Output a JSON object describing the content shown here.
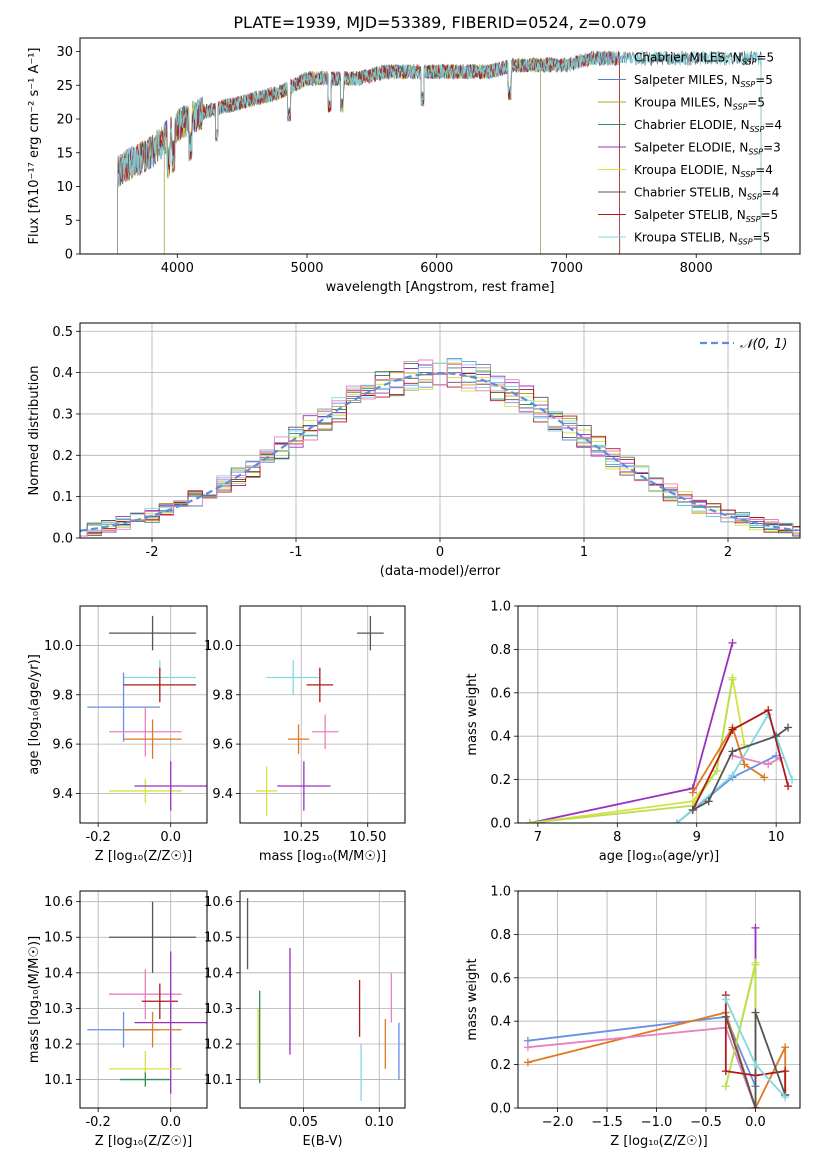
{
  "figure": {
    "title": "PLATE=1939, MJD=53389, FIBERID=0524, z=0.079"
  },
  "colors": {
    "Chabrier MILES": "#6a8ee8",
    "Salpeter MILES": "#6a8ee8",
    "Kroupa MILES": "#b8a030",
    "Chabrier ELODIE": "#3a8a5a",
    "Salpeter ELODIE": "#9a30c0",
    "Kroupa ELODIE": "#d8e040",
    "Chabrier STELIB": "#555555",
    "Salpeter STELIB": "#b01818",
    "Kroupa STELIB": "#80d8e0",
    "orange": "#e07a20",
    "pink": "#e880c0",
    "lime": "#b8e050",
    "normal": "#5b8fd8",
    "grid": "#b0b0b0"
  },
  "chart_data": [
    {
      "id": "spectrum",
      "type": "line",
      "title": "PLATE=1939, MJD=53389, FIBERID=0524, z=0.079",
      "xlabel": "wavelength [Angstrom, rest frame]",
      "ylabel": "Flux [fλ10⁻¹⁷ erg cm⁻² s⁻¹ A⁻¹]",
      "xlim": [
        3250,
        8800
      ],
      "ylim": [
        0,
        32
      ],
      "xticks": [
        4000,
        5000,
        6000,
        7000,
        8000
      ],
      "yticks": [
        0,
        5,
        10,
        15,
        20,
        25,
        30
      ],
      "legend_position": "right",
      "grid": false,
      "data_approx": {
        "x": [
          3520,
          3600,
          3800,
          3900,
          4000,
          4200,
          4400,
          4600,
          4800,
          5000,
          5200,
          5400,
          5600,
          5800,
          6000,
          6200,
          6400,
          6600,
          6800,
          7000,
          7200,
          7400
        ],
        "y": [
          12,
          13,
          15,
          17,
          19,
          21,
          22,
          23,
          24,
          26,
          26,
          26,
          27,
          27,
          27,
          27,
          27,
          28,
          28,
          28,
          29,
          29
        ]
      },
      "series": [
        {
          "name": "Chabrier MILES, N",
          "sub": "SSP",
          "suffix": "=5",
          "color": "#6a8ee8",
          "xmin": 3540,
          "xmax": 7410
        },
        {
          "name": "Salpeter MILES, N",
          "sub": "SSP",
          "suffix": "=5",
          "color": "#5a7ed0",
          "xmin": 3540,
          "xmax": 7410
        },
        {
          "name": "Kroupa MILES, N",
          "sub": "SSP",
          "suffix": "=5",
          "color": "#b8a030",
          "xmin": 3540,
          "xmax": 7410
        },
        {
          "name": "Chabrier ELODIE, N",
          "sub": "SSP",
          "suffix": "=4",
          "color": "#3a8a5a",
          "xmin": 3900,
          "xmax": 6800
        },
        {
          "name": "Salpeter ELODIE, N",
          "sub": "SSP",
          "suffix": "=3",
          "color": "#9a30c0",
          "xmin": 3900,
          "xmax": 6800
        },
        {
          "name": "Kroupa ELODIE, N",
          "sub": "SSP",
          "suffix": "=4",
          "color": "#d8e040",
          "xmin": 3900,
          "xmax": 6800
        },
        {
          "name": "Chabrier STELIB, N",
          "sub": "SSP",
          "suffix": "=4",
          "color": "#555555",
          "xmin": 3540,
          "xmax": 8500
        },
        {
          "name": "Salpeter STELIB, N",
          "sub": "SSP",
          "suffix": "=5",
          "color": "#b01818",
          "xmin": 3540,
          "xmax": 7410
        },
        {
          "name": "Kroupa STELIB, N",
          "sub": "SSP",
          "suffix": "=5",
          "color": "#80d8e0",
          "xmin": 3540,
          "xmax": 8500
        }
      ]
    },
    {
      "id": "residuals",
      "type": "line",
      "xlabel": "(data-model)/error",
      "ylabel": "Normed distribution",
      "xlim": [
        -2.5,
        2.5
      ],
      "ylim": [
        0,
        0.52
      ],
      "xticks": [
        -2,
        -1,
        0,
        1,
        2
      ],
      "yticks": [
        0.0,
        0.1,
        0.2,
        0.3,
        0.4,
        0.5
      ],
      "grid": true,
      "legend": {
        "label": "𝒩(0, 1)",
        "position": "top-right"
      },
      "bin_width": 0.1
    },
    {
      "id": "age_vs_Z",
      "type": "scatter",
      "xlabel": "Z [log₁₀(Z/Z☉)]",
      "ylabel": "age  [log₁₀(age/yr)]",
      "xlim": [
        -0.25,
        0.1
      ],
      "ylim": [
        9.28,
        10.16
      ],
      "xticks": [
        -0.2,
        0.0
      ],
      "yticks": [
        9.4,
        9.6,
        9.8,
        10.0
      ],
      "grid": true,
      "points": [
        {
          "color": "#555555",
          "x": -0.05,
          "y": 10.05,
          "xerr": 0.12,
          "yerr": 0.07
        },
        {
          "color": "#80d8e0",
          "x": -0.03,
          "y": 9.87,
          "xerr": 0.1,
          "yerr": 0.07
        },
        {
          "color": "#6a8ee8",
          "x": -0.13,
          "y": 9.75,
          "xerr": 0.1,
          "yerr": 0.14
        },
        {
          "color": "#b01818",
          "x": -0.03,
          "y": 9.84,
          "xerr": 0.1,
          "yerr": 0.07
        },
        {
          "color": "#e880c0",
          "x": -0.07,
          "y": 9.65,
          "xerr": 0.1,
          "yerr": 0.1
        },
        {
          "color": "#e07a20",
          "x": -0.05,
          "y": 9.62,
          "xerr": 0.08,
          "yerr": 0.08
        },
        {
          "color": "#d8e040",
          "x": -0.07,
          "y": 9.41,
          "xerr": 0.1,
          "yerr": 0.05
        },
        {
          "color": "#9a30c0",
          "x": 0.0,
          "y": 9.43,
          "xerr": 0.1,
          "yerr": 0.1
        }
      ]
    },
    {
      "id": "age_vs_mass",
      "type": "scatter",
      "xlabel": "mass [log₁₀(M/M☉)]",
      "ylabel": "",
      "xlim": [
        10.02,
        10.64
      ],
      "ylim": [
        9.28,
        10.16
      ],
      "xticks": [
        10.25,
        10.5
      ],
      "yticks": [
        9.4,
        9.6,
        9.8,
        10.0
      ],
      "grid": true,
      "points": [
        {
          "color": "#555555",
          "x": 10.51,
          "y": 10.05,
          "xerr": 0.05,
          "yerr": 0.07
        },
        {
          "color": "#80d8e0",
          "x": 10.22,
          "y": 9.87,
          "xerr": 0.1,
          "yerr": 0.07
        },
        {
          "color": "#b01818",
          "x": 10.32,
          "y": 9.84,
          "xerr": 0.05,
          "yerr": 0.07
        },
        {
          "color": "#e880c0",
          "x": 10.34,
          "y": 9.65,
          "xerr": 0.05,
          "yerr": 0.07
        },
        {
          "color": "#e07a20",
          "x": 10.24,
          "y": 9.62,
          "xerr": 0.04,
          "yerr": 0.06
        },
        {
          "color": "#d8e040",
          "x": 10.12,
          "y": 9.41,
          "xerr": 0.04,
          "yerr": 0.1
        },
        {
          "color": "#9a30c0",
          "x": 10.26,
          "y": 9.43,
          "xerr": 0.1,
          "yerr": 0.1
        }
      ]
    },
    {
      "id": "mw_vs_age",
      "type": "line",
      "xlabel": "age  [log₁₀(age/yr)]",
      "ylabel": "mass weight",
      "xlim": [
        6.75,
        10.3
      ],
      "ylim": [
        0,
        1.0
      ],
      "xticks": [
        7,
        8,
        9,
        10
      ],
      "yticks": [
        0.0,
        0.2,
        0.4,
        0.6,
        0.8,
        1.0
      ],
      "grid": true,
      "series": [
        {
          "color": "#9a30c0",
          "x": [
            6.9,
            8.95,
            9.45
          ],
          "y": [
            0.0,
            0.16,
            0.83
          ]
        },
        {
          "color": "#d8e040",
          "x": [
            6.9,
            8.95,
            9.25,
            9.45,
            9.6
          ],
          "y": [
            0.0,
            0.1,
            0.24,
            0.67,
            0.36
          ]
        },
        {
          "color": "#b8e050",
          "x": [
            6.9,
            8.95,
            9.25,
            9.45
          ],
          "y": [
            0.0,
            0.08,
            0.24,
            0.66
          ]
        },
        {
          "color": "#e07a20",
          "x": [
            8.95,
            9.45,
            9.6,
            9.85
          ],
          "y": [
            0.14,
            0.44,
            0.27,
            0.21
          ]
        },
        {
          "color": "#6a8ee8",
          "x": [
            8.75,
            9.45,
            10.0
          ],
          "y": [
            0.0,
            0.21,
            0.31
          ]
        },
        {
          "color": "#80d8e0",
          "x": [
            8.75,
            9.45,
            9.9,
            10.2
          ],
          "y": [
            0.0,
            0.22,
            0.5,
            0.2
          ]
        },
        {
          "color": "#e880c0",
          "x": [
            9.45,
            9.9,
            10.05
          ],
          "y": [
            0.31,
            0.27,
            0.3
          ]
        },
        {
          "color": "#b01818",
          "x": [
            8.95,
            9.45,
            9.9,
            10.15
          ],
          "y": [
            0.06,
            0.43,
            0.52,
            0.17
          ]
        },
        {
          "color": "#555555",
          "x": [
            8.95,
            9.15,
            9.45,
            10.0,
            10.15
          ],
          "y": [
            0.06,
            0.1,
            0.33,
            0.4,
            0.44
          ]
        }
      ]
    },
    {
      "id": "mass_vs_Z",
      "type": "scatter",
      "xlabel": "Z [log₁₀(Z/Z☉)]",
      "ylabel": "mass [log₁₀(M/M☉)]",
      "xlim": [
        -0.25,
        0.1
      ],
      "ylim": [
        10.02,
        10.63
      ],
      "xticks": [
        -0.2,
        0.0
      ],
      "yticks": [
        10.1,
        10.2,
        10.3,
        10.4,
        10.5,
        10.6
      ],
      "grid": true,
      "points": [
        {
          "color": "#555555",
          "x": -0.05,
          "y": 10.5,
          "xerr": 0.12,
          "yerr": 0.1
        },
        {
          "color": "#e880c0",
          "x": -0.07,
          "y": 10.34,
          "xerr": 0.1,
          "yerr": 0.07
        },
        {
          "color": "#b01818",
          "x": -0.03,
          "y": 10.32,
          "xerr": 0.05,
          "yerr": 0.05
        },
        {
          "color": "#9a30c0",
          "x": -0.0,
          "y": 10.26,
          "xerr": 0.1,
          "yerr": 0.2
        },
        {
          "color": "#6a8ee8",
          "x": -0.13,
          "y": 10.24,
          "xerr": 0.1,
          "yerr": 0.05
        },
        {
          "color": "#e07a20",
          "x": -0.05,
          "y": 10.24,
          "xerr": 0.08,
          "yerr": 0.05
        },
        {
          "color": "#d8e040",
          "x": -0.07,
          "y": 10.13,
          "xerr": 0.1,
          "yerr": 0.05
        },
        {
          "color": "#3a8a5a",
          "x": -0.07,
          "y": 10.1,
          "xerr": 0.07,
          "yerr": 0.02
        }
      ]
    },
    {
      "id": "mass_vs_ebv",
      "type": "scatter",
      "xlabel": "E(B-V)",
      "ylabel": "",
      "xlim": [
        0.008,
        0.117
      ],
      "ylim": [
        10.02,
        10.63
      ],
      "xticks": [
        0.05,
        0.1
      ],
      "yticks": [
        10.1,
        10.2,
        10.3,
        10.4,
        10.5,
        10.6
      ],
      "grid": true,
      "points": [
        {
          "color": "#555555",
          "x": 0.013,
          "y": 10.51,
          "xerr": 0.0,
          "yerr": 0.1
        },
        {
          "color": "#d8e040",
          "x": 0.02,
          "y": 10.2,
          "xerr": 0.0,
          "yerr": 0.1
        },
        {
          "color": "#3a8a5a",
          "x": 0.021,
          "y": 10.22,
          "xerr": 0.0,
          "yerr": 0.13
        },
        {
          "color": "#9a30c0",
          "x": 0.041,
          "y": 10.32,
          "xerr": 0.0,
          "yerr": 0.15
        },
        {
          "color": "#b01818",
          "x": 0.087,
          "y": 10.3,
          "xerr": 0.0,
          "yerr": 0.08
        },
        {
          "color": "#80d8e0",
          "x": 0.088,
          "y": 10.12,
          "xerr": 0.0,
          "yerr": 0.08
        },
        {
          "color": "#e07a20",
          "x": 0.104,
          "y": 10.2,
          "xerr": 0.0,
          "yerr": 0.07
        },
        {
          "color": "#e880c0",
          "x": 0.108,
          "y": 10.33,
          "xerr": 0.0,
          "yerr": 0.07
        },
        {
          "color": "#6a8ee8",
          "x": 0.113,
          "y": 10.18,
          "xerr": 0.0,
          "yerr": 0.08
        }
      ]
    },
    {
      "id": "mw_vs_Z",
      "type": "line",
      "xlabel": "Z [log₁₀(Z/Z☉)]",
      "ylabel": "mass weight",
      "xlim": [
        -2.4,
        0.45
      ],
      "ylim": [
        0,
        1.0
      ],
      "xticks": [
        -2.0,
        -1.5,
        -1.0,
        -0.5,
        0.0
      ],
      "yticks": [
        0.0,
        0.2,
        0.4,
        0.6,
        0.8,
        1.0
      ],
      "grid": true,
      "series": [
        {
          "color": "#6a8ee8",
          "x": [
            -2.3,
            -0.3,
            0.0
          ],
          "y": [
            0.31,
            0.42,
            0.1
          ]
        },
        {
          "color": "#e07a20",
          "x": [
            -2.3,
            -0.3,
            0.0,
            0.3,
            0.3
          ],
          "y": [
            0.21,
            0.44,
            0.0,
            0.28,
            0.06
          ]
        },
        {
          "color": "#e880c0",
          "x": [
            -2.3,
            -0.3,
            0.0
          ],
          "y": [
            0.28,
            0.37,
            0.0
          ]
        },
        {
          "color": "#9a30c0",
          "x": [
            0.0,
            0.0
          ],
          "y": [
            0.0,
            0.83
          ]
        },
        {
          "color": "#d8e040",
          "x": [
            -0.3,
            0.0,
            0.0
          ],
          "y": [
            0.1,
            0.67,
            0.0
          ]
        },
        {
          "color": "#b8e050",
          "x": [
            -0.3,
            0.0,
            0.0
          ],
          "y": [
            0.1,
            0.66,
            0.2
          ]
        },
        {
          "color": "#b01818",
          "x": [
            -0.3,
            -0.3,
            0.0,
            0.3,
            0.3
          ],
          "y": [
            0.52,
            0.17,
            0.15,
            0.17,
            0.06
          ]
        },
        {
          "color": "#555555",
          "x": [
            -0.3,
            0.0,
            0.0,
            0.3
          ],
          "y": [
            0.42,
            0.0,
            0.44,
            0.06
          ]
        },
        {
          "color": "#80d8e0",
          "x": [
            -0.3,
            0.0,
            0.3
          ],
          "y": [
            0.5,
            0.2,
            0.05
          ]
        }
      ]
    }
  ]
}
